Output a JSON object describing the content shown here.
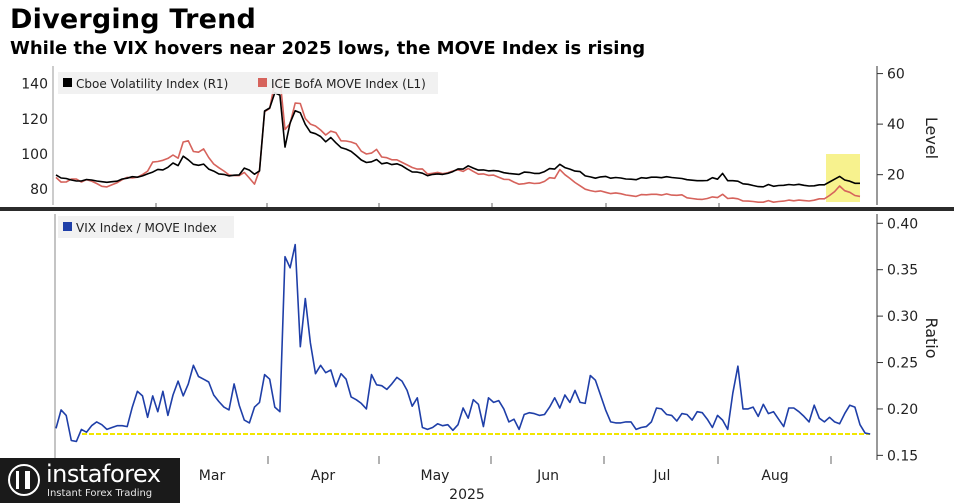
{
  "header": {
    "title": "Diverging Trend",
    "subtitle": "While the VIX hovers near 2025 lows, the MOVE Index is rising"
  },
  "watermark": {
    "brand": "instaforex",
    "tagline": "Instant Forex Trading"
  },
  "colors": {
    "vix": "#000000",
    "move": "#d6635c",
    "ratio": "#1f3fa8",
    "highlight_box": "#f6f07a",
    "reference_line": "#f2e600",
    "divider": "#2b2b2b"
  },
  "chart_data": [
    {
      "type": "line",
      "panel": "top",
      "legend_placement": "top-left",
      "left_axis": {
        "range": [
          71,
          150
        ],
        "ticks": [
          "80",
          "100",
          "120",
          "140"
        ]
      },
      "right_axis": {
        "label": "Level",
        "range": [
          8,
          63
        ],
        "ticks": [
          "20",
          "40",
          "60"
        ]
      },
      "x_ticks": [
        "Mar",
        "Apr",
        "May",
        "Jun",
        "Jul",
        "Aug"
      ],
      "series": [
        {
          "name": "Cboe Volatility Index (R1)",
          "axis": "right",
          "values": [
            19.9,
            18.7,
            18.5,
            17.9,
            17.5,
            17.5,
            18.1,
            17.9,
            17.5,
            17.2,
            17.0,
            17.2,
            17.4,
            18.3,
            18.6,
            19.2,
            19.0,
            19.5,
            20.3,
            21.0,
            22.1,
            21.9,
            22.9,
            24.6,
            23.6,
            27.3,
            25.9,
            24.1,
            23.7,
            24.2,
            22.2,
            21.4,
            20.3,
            20.1,
            19.5,
            19.8,
            19.9,
            22.6,
            21.8,
            20.2,
            21.5,
            45.2,
            46.4,
            52.4,
            51.5,
            30.9,
            40.5,
            45.3,
            44.5,
            39.9,
            36.8,
            36.2,
            35.1,
            33.0,
            34.7,
            32.6,
            30.7,
            30.1,
            29.2,
            27.6,
            25.8,
            24.8,
            25.1,
            26.0,
            24.3,
            24.7,
            24.0,
            24.3,
            23.5,
            22.2,
            21.1,
            21.0,
            20.6,
            19.6,
            20.1,
            20.3,
            20.1,
            20.5,
            21.2,
            22.3,
            22.2,
            23.5,
            22.6,
            21.8,
            21.9,
            21.5,
            21.6,
            21.4,
            20.8,
            20.5,
            20.3,
            20.1,
            21.0,
            20.9,
            20.5,
            20.5,
            21.2,
            22.4,
            22.2,
            24.1,
            22.8,
            22.2,
            21.4,
            21.2,
            19.5,
            19.1,
            18.6,
            19.1,
            19.3,
            18.6,
            18.9,
            18.7,
            18.3,
            18.2,
            18.0,
            18.8,
            18.6,
            19.0,
            19.0,
            18.8,
            19.2,
            18.9,
            18.7,
            18.5,
            18.0,
            17.8,
            17.6,
            17.6,
            17.7,
            18.8,
            18.2,
            20.5,
            17.6,
            17.6,
            17.4,
            16.4,
            16.2,
            15.7,
            15.3,
            15.2,
            16.1,
            15.4,
            15.7,
            15.8,
            16.1,
            15.9,
            16.2,
            15.8,
            15.5,
            15.6,
            16.0,
            16.0,
            17.1,
            18.2,
            19.3,
            17.9,
            17.4,
            16.6,
            16.6
          ]
        },
        {
          "name": "ICE BofA MOVE Index (L1)",
          "axis": "left",
          "values": [
            86.7,
            84.0,
            84.1,
            85.7,
            85.7,
            84.1,
            85.4,
            84.6,
            83.2,
            81.6,
            81.3,
            82.5,
            83.7,
            85.4,
            86.7,
            86.4,
            86.8,
            88.3,
            90.2,
            95.4,
            95.7,
            96.4,
            97.5,
            99.4,
            97.6,
            106.8,
            107.5,
            101.4,
            101.0,
            102.9,
            98.0,
            94.3,
            92.2,
            90.3,
            88.1,
            87.7,
            87.7,
            89.5,
            86.3,
            82.9,
            90.8,
            124.0,
            125.9,
            140.5,
            143.1,
            113.9,
            117.3,
            128.9,
            128.7,
            120.1,
            117.0,
            115.9,
            113.6,
            110.8,
            113.0,
            112.1,
            107.5,
            107.4,
            106.8,
            105.7,
            101.6,
            100.0,
            100.5,
            102.6,
            98.3,
            97.9,
            96.7,
            96.7,
            95.2,
            93.8,
            92.3,
            91.4,
            91.5,
            88.6,
            89.0,
            89.5,
            88.8,
            89.3,
            90.3,
            91.0,
            90.1,
            91.8,
            90.1,
            88.5,
            88.7,
            87.8,
            88.0,
            86.8,
            85.6,
            85.5,
            84.0,
            82.8,
            83.1,
            83.7,
            83.2,
            83.4,
            84.4,
            86.5,
            86.2,
            91.1,
            88.2,
            86.1,
            83.8,
            81.9,
            80.0,
            79.2,
            78.6,
            79.0,
            78.2,
            77.5,
            77.9,
            77.4,
            76.7,
            76.3,
            75.9,
            76.9,
            76.8,
            77.1,
            77.1,
            76.6,
            77.3,
            76.6,
            76.5,
            76.8,
            75.1,
            74.7,
            74.3,
            74.2,
            74.7,
            75.6,
            75.2,
            77.1,
            74.7,
            74.9,
            74.5,
            73.3,
            73.2,
            73.0,
            72.6,
            72.6,
            73.5,
            72.6,
            73.0,
            73.2,
            73.8,
            73.4,
            73.8,
            73.5,
            73.3,
            73.7,
            74.5,
            74.5,
            76.4,
            78.6,
            81.8,
            79.1,
            78.2,
            76.4,
            75.9
          ]
        }
      ]
    },
    {
      "type": "line",
      "panel": "bottom",
      "legend_placement": "top-left",
      "right_axis": {
        "label": "Ratio",
        "range": [
          0.145,
          0.41
        ],
        "ticks": [
          "0.15",
          "0.20",
          "0.25",
          "0.30",
          "0.35",
          "0.40"
        ]
      },
      "x_ticks": [
        "Mar",
        "Apr",
        "May",
        "Jun",
        "Jul",
        "Aug"
      ],
      "x_year_label": "2025",
      "reference_line": 0.173,
      "series": [
        {
          "name": "VIX Index / MOVE Index",
          "values": [
            0.179,
            0.199,
            0.193,
            0.166,
            0.165,
            0.178,
            0.175,
            0.182,
            0.186,
            0.183,
            0.178,
            0.18,
            0.182,
            0.182,
            0.181,
            0.202,
            0.219,
            0.214,
            0.191,
            0.214,
            0.197,
            0.219,
            0.193,
            0.215,
            0.23,
            0.214,
            0.227,
            0.247,
            0.235,
            0.232,
            0.229,
            0.215,
            0.208,
            0.202,
            0.199,
            0.227,
            0.204,
            0.188,
            0.185,
            0.202,
            0.207,
            0.237,
            0.232,
            0.202,
            0.197,
            0.364,
            0.352,
            0.377,
            0.267,
            0.319,
            0.271,
            0.238,
            0.247,
            0.239,
            0.242,
            0.224,
            0.238,
            0.232,
            0.213,
            0.21,
            0.206,
            0.2,
            0.237,
            0.226,
            0.225,
            0.221,
            0.227,
            0.234,
            0.23,
            0.22,
            0.203,
            0.212,
            0.18,
            0.178,
            0.18,
            0.184,
            0.182,
            0.183,
            0.177,
            0.183,
            0.201,
            0.19,
            0.21,
            0.205,
            0.181,
            0.212,
            0.207,
            0.209,
            0.2,
            0.186,
            0.189,
            0.178,
            0.194,
            0.196,
            0.195,
            0.193,
            0.194,
            0.202,
            0.212,
            0.201,
            0.215,
            0.207,
            0.22,
            0.207,
            0.206,
            0.236,
            0.231,
            0.215,
            0.199,
            0.186,
            0.185,
            0.185,
            0.186,
            0.186,
            0.178,
            0.18,
            0.181,
            0.186,
            0.201,
            0.2,
            0.194,
            0.193,
            0.187,
            0.195,
            0.194,
            0.188,
            0.197,
            0.196,
            0.189,
            0.18,
            0.193,
            0.188,
            0.178,
            0.217,
            0.246,
            0.2,
            0.2,
            0.202,
            0.192,
            0.205,
            0.195,
            0.197,
            0.189,
            0.181,
            0.201,
            0.201,
            0.197,
            0.192,
            0.186,
            0.204,
            0.19,
            0.186,
            0.191,
            0.186,
            0.184,
            0.195,
            0.204,
            0.202,
            0.183,
            0.174,
            0.173
          ]
        }
      ]
    }
  ]
}
